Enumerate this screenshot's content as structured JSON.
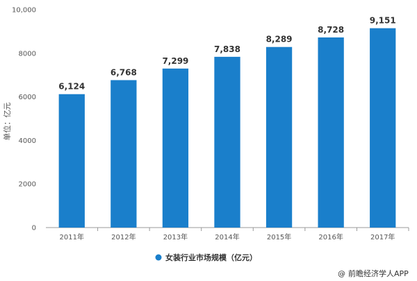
{
  "chart_data": {
    "type": "bar",
    "categories": [
      "2011年",
      "2012年",
      "2013年",
      "2014年",
      "2015年",
      "2016年",
      "2017年"
    ],
    "series": [
      {
        "name": "女装行业市场规模（亿元）",
        "values": [
          6124,
          6768,
          7299,
          7838,
          8289,
          8728,
          9151
        ],
        "color": "#1a7fcb"
      }
    ],
    "data_labels": [
      "6,124",
      "6,768",
      "7,299",
      "7,838",
      "8,289",
      "8,728",
      "9,151"
    ],
    "ylabel": "单位：亿元",
    "ylim": [
      0,
      10000
    ],
    "yticks": [
      0,
      2000,
      4000,
      6000,
      8000,
      10000
    ],
    "ytick_labels": [
      "0",
      "2000",
      "4000",
      "6000",
      "8000",
      "10,000"
    ],
    "grid": false,
    "legend": "bottom-center"
  },
  "credit": {
    "symbol": "@",
    "text": "前瞻经济学人APP"
  }
}
